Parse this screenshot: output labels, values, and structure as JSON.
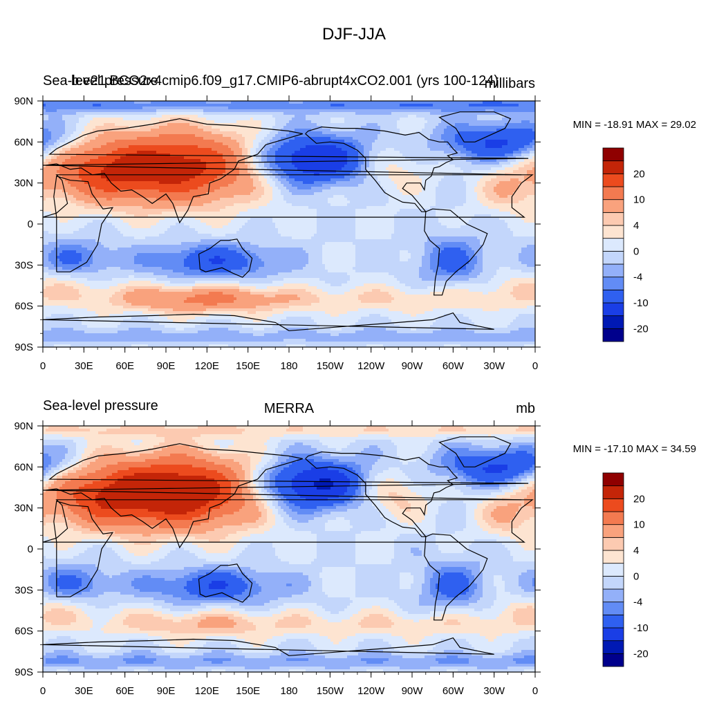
{
  "figure_title": "DJF-JJA",
  "panels": [
    {
      "left_title": "Sea-level pressure",
      "center_title": "b.e21.BCO2x4cmip6.f09_g17.CMIP6-abrupt4xCO2.001 (yrs 100-124)",
      "units": "millibars",
      "stats": "MIN = -18.91 MAX =  29.02"
    },
    {
      "left_title": "Sea-level pressure",
      "center_title": "MERRA",
      "units": "mb",
      "stats": "MIN = -17.10 MAX =  34.59"
    }
  ],
  "colors": {
    "land_outline": "#000000",
    "background": "#ffffff"
  },
  "chart_data": [
    {
      "type": "heatmap",
      "x_ticks": [
        "0",
        "30E",
        "60E",
        "90E",
        "120E",
        "150E",
        "180",
        "150W",
        "120W",
        "90W",
        "60W",
        "30W",
        "0"
      ],
      "y_ticks": [
        "90N",
        "60N",
        "30N",
        "0",
        "30S",
        "60S",
        "90S"
      ],
      "xlim": [
        0,
        360
      ],
      "ylim": [
        -90,
        90
      ],
      "colorbar": {
        "levels": [
          -20,
          -15,
          -10,
          -6,
          -4,
          -2,
          0,
          2,
          4,
          6,
          10,
          15,
          20
        ],
        "tick_labels": [
          "-20",
          "-10",
          "-4",
          "0",
          "4",
          "10",
          "20"
        ],
        "colors": [
          "#00008c",
          "#0019b4",
          "#1a3ee6",
          "#2f60f0",
          "#628cf5",
          "#93b0f9",
          "#c3d6fb",
          "#dce9fd",
          "#fde4d1",
          "#fccab1",
          "#f9a27d",
          "#f37a50",
          "#ec4b1e",
          "#c42508",
          "#8f0000"
        ]
      },
      "min": -18.91,
      "max": 29.02
    },
    {
      "type": "heatmap",
      "x_ticks": [
        "0",
        "30E",
        "60E",
        "90E",
        "120E",
        "150E",
        "180",
        "150W",
        "120W",
        "90W",
        "60W",
        "30W",
        "0"
      ],
      "y_ticks": [
        "90N",
        "60N",
        "30N",
        "0",
        "30S",
        "60S",
        "90S"
      ],
      "xlim": [
        0,
        360
      ],
      "ylim": [
        -90,
        90
      ],
      "colorbar": {
        "levels": [
          -20,
          -15,
          -10,
          -6,
          -4,
          -2,
          0,
          2,
          4,
          6,
          10,
          15,
          20
        ],
        "tick_labels": [
          "-20",
          "-10",
          "-4",
          "0",
          "4",
          "10",
          "20"
        ],
        "colors": [
          "#00008c",
          "#0019b4",
          "#1a3ee6",
          "#2f60f0",
          "#628cf5",
          "#93b0f9",
          "#c3d6fb",
          "#dce9fd",
          "#fde4d1",
          "#fccab1",
          "#f9a27d",
          "#f37a50",
          "#ec4b1e",
          "#c42508",
          "#8f0000"
        ]
      },
      "min": -17.1,
      "max": 34.59
    }
  ]
}
